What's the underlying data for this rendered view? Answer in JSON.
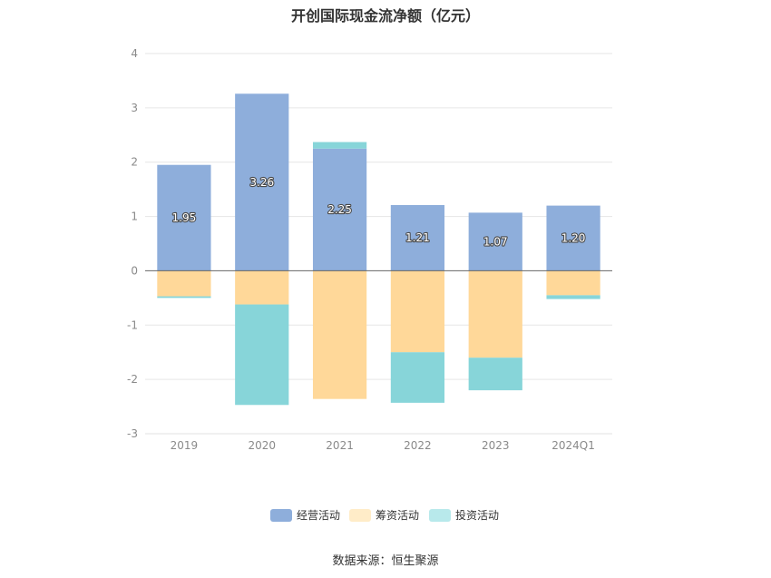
{
  "chart_data": {
    "type": "bar",
    "stacked": true,
    "title": "开创国际现金流净额（亿元）",
    "categories": [
      "2019",
      "2020",
      "2021",
      "2022",
      "2023",
      "2024Q1"
    ],
    "series": [
      {
        "name": "经营活动",
        "color": "#8eaedb",
        "values": [
          1.95,
          3.26,
          2.25,
          1.21,
          1.07,
          1.2
        ],
        "labels": [
          "1.95",
          "3.26",
          "2.25",
          "1.21",
          "1.07",
          "1.20"
        ]
      },
      {
        "name": "筹资活动",
        "color": "#ffd899",
        "values": [
          -0.47,
          -0.62,
          -2.36,
          -1.5,
          -1.6,
          -0.45
        ]
      },
      {
        "name": "投资活动",
        "color": "#87d5d9",
        "values": [
          -0.03,
          -1.85,
          0.12,
          -0.93,
          -0.6,
          -0.07
        ]
      }
    ],
    "yticks": [
      "4",
      "3",
      "2",
      "1",
      "0",
      "-1",
      "-2",
      "-3"
    ],
    "ylim": [
      -3,
      4
    ],
    "grid": true,
    "legend": "bottom"
  },
  "legend_colors": {
    "经营活动": "#8eaedb",
    "筹资活动": "#ffecc8",
    "投资活动": "#b8e9eb"
  },
  "source": "数据来源：恒生聚源"
}
